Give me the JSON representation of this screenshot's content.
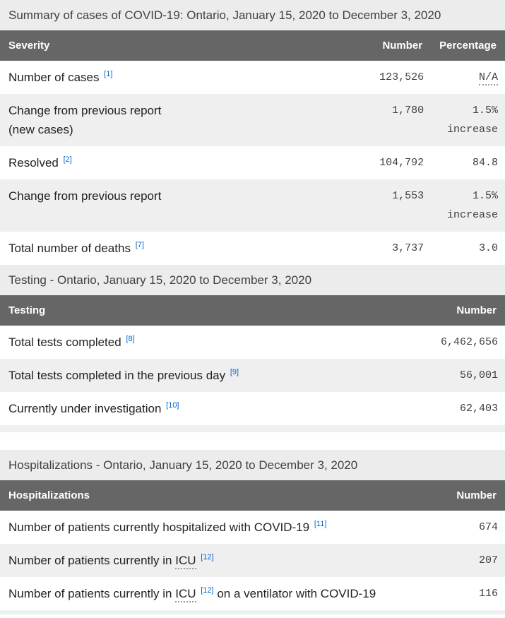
{
  "colors": {
    "caption_bg": "#ececec",
    "caption_text": "#414042",
    "header_bg": "#666666",
    "header_text": "#ffffff",
    "row_alt_bg": "#efefef",
    "label_text": "#222222",
    "number_text": "#3f3f3f",
    "link_blue": "#0066cc"
  },
  "summary": {
    "caption": "Summary of cases of COVID-19: Ontario, January 15, 2020 to December 3, 2020",
    "columns": {
      "severity": "Severity",
      "number": "Number",
      "percentage": "Percentage"
    },
    "rows": [
      {
        "label": "Number of cases",
        "ref": "[1]",
        "number": "123,526",
        "percentage": "N/A"
      },
      {
        "label": "Change from previous report",
        "label_line2": "(new cases)",
        "number": "1,780",
        "percentage": "1.5%",
        "percentage_line2": "increase"
      },
      {
        "label": "Resolved",
        "ref": "[2]",
        "number": "104,792",
        "percentage": "84.8"
      },
      {
        "label": "Change from previous report",
        "number": "1,553",
        "percentage": "1.5%",
        "percentage_line2": "increase"
      },
      {
        "label": "Total number of deaths",
        "ref": "[7]",
        "number": "3,737",
        "percentage": "3.0"
      }
    ]
  },
  "testing": {
    "caption": "Testing - Ontario, January 15, 2020 to December 3, 2020",
    "columns": {
      "label": "Testing",
      "number": "Number"
    },
    "rows": [
      {
        "label": "Total tests completed",
        "ref": "[8]",
        "number": "6,462,656"
      },
      {
        "label": "Total tests completed in the previous day",
        "ref": "[9]",
        "number": "56,001"
      },
      {
        "label": "Currently under investigation",
        "ref": "[10]",
        "number": "62,403"
      }
    ]
  },
  "hospitalizations": {
    "caption": "Hospitalizations - Ontario, January 15, 2020 to December 3, 2020",
    "columns": {
      "label": "Hospitalizations",
      "number": "Number"
    },
    "rows": [
      {
        "label": "Number of patients currently hospitalized with COVID-19",
        "ref": "[11]",
        "number": "674"
      },
      {
        "label_pre": "Number of patients currently in",
        "abbr": "ICU",
        "ref": "[12]",
        "number": "207"
      },
      {
        "label_pre": "Number of patients currently in",
        "abbr": "ICU",
        "ref": "[12]",
        "label_post": "on a ventilator with COVID-19",
        "number": "116"
      }
    ]
  }
}
